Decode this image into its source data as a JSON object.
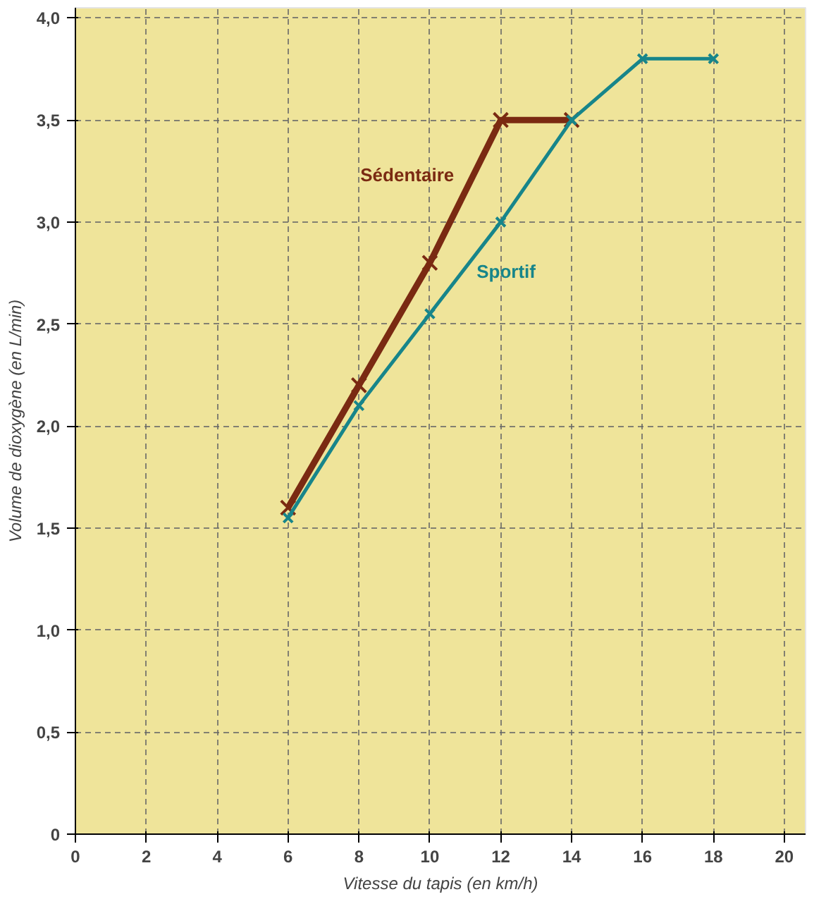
{
  "chart_data": {
    "type": "line",
    "xlabel": "Vitesse du tapis (en km/h)",
    "ylabel": "Volume de dioxygène (en L/min)",
    "xlim": [
      0,
      20.6
    ],
    "xticks": [
      0,
      2,
      4,
      6,
      8,
      10,
      12,
      14,
      16,
      18,
      20
    ],
    "ylim": [
      0,
      4.05
    ],
    "yticks": [
      0,
      {
        "value": 0.5,
        "label": "0,5"
      },
      {
        "value": 1,
        "label": "1,0"
      },
      {
        "value": 1.5,
        "label": "1,5"
      },
      {
        "value": 2,
        "label": "2,0"
      },
      {
        "value": 2.5,
        "label": "2,5"
      },
      {
        "value": 3,
        "label": "3,0"
      },
      {
        "value": 3.5,
        "label": "3,5"
      },
      {
        "value": 4,
        "label": "4,0"
      }
    ],
    "grid": true,
    "marker": "cross",
    "line_style": "solid",
    "series": [
      {
        "name": "Sédentaire",
        "color": "#7a2a12",
        "x": [
          6,
          8,
          10,
          12,
          14
        ],
        "values": [
          1.6,
          2.2,
          2.8,
          3.5,
          3.5
        ]
      },
      {
        "name": "Sportif",
        "color": "#17858a",
        "x": [
          6,
          8,
          10,
          12,
          14,
          16,
          18
        ],
        "values": [
          1.55,
          2.1,
          2.55,
          3.0,
          3.5,
          3.8,
          3.8
        ]
      }
    ]
  }
}
